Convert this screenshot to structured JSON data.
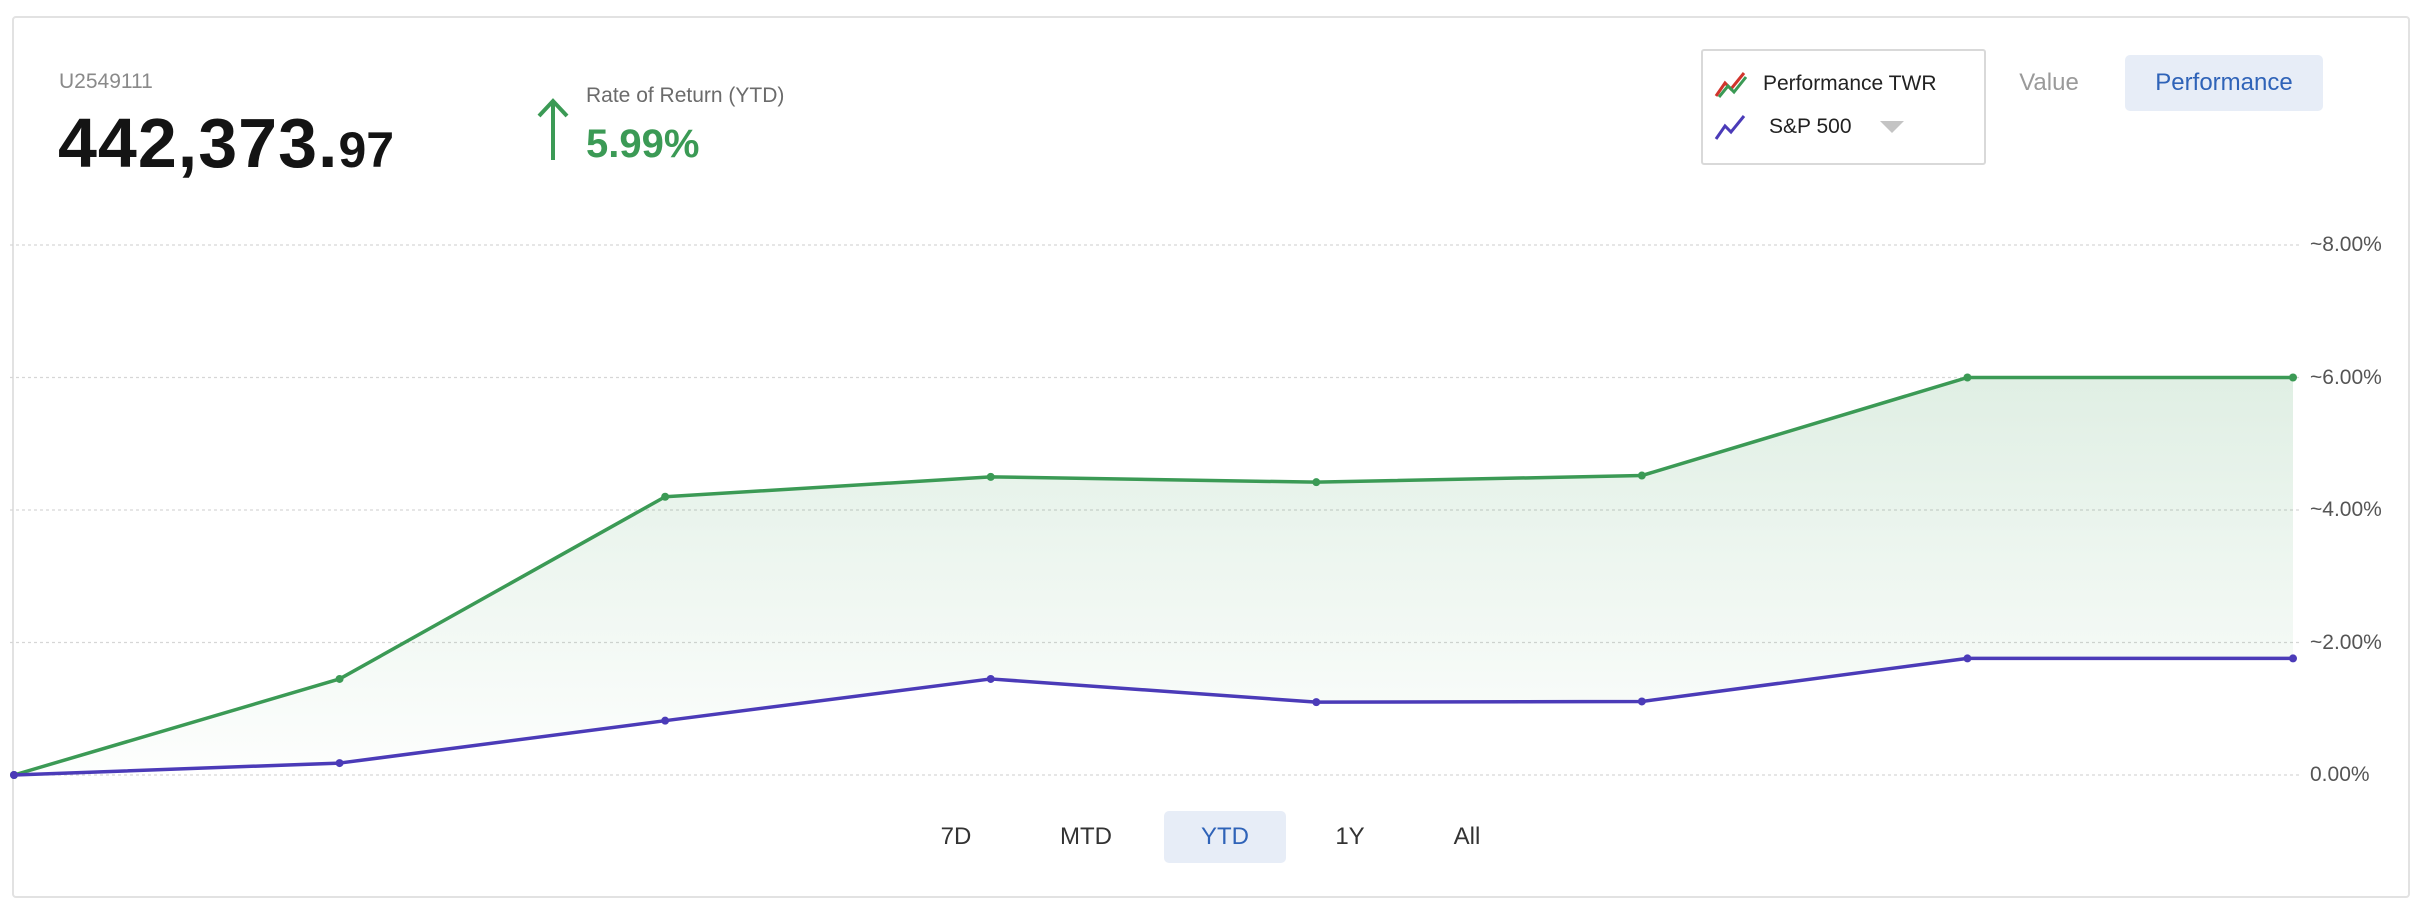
{
  "account": {
    "id": "U2549111",
    "balance_int": "442,373.",
    "balance_dec": "97"
  },
  "return": {
    "label": "Rate of Return (YTD)",
    "value": "5.99%"
  },
  "legend": {
    "items": [
      {
        "label": "Performance TWR",
        "icon": "trend-line-icon",
        "color": "#3b9a55"
      },
      {
        "label": "S&P 500",
        "icon": "trend-line-icon",
        "color": "#4b3bb8"
      }
    ]
  },
  "view_toggle": {
    "value_label": "Value",
    "performance_label": "Performance",
    "selected": "Performance"
  },
  "ranges": {
    "items": [
      "7D",
      "MTD",
      "YTD",
      "1Y",
      "All"
    ],
    "selected": "YTD"
  },
  "colors": {
    "positive": "#3b9a55",
    "benchmark": "#4b3bb8",
    "accent": "#2f63b8",
    "grid": "#d6d6d6"
  },
  "chart_data": {
    "type": "line",
    "x": [
      0,
      1,
      2,
      3,
      4,
      5,
      6,
      7
    ],
    "series": [
      {
        "name": "Performance TWR",
        "values": [
          0.0,
          1.45,
          4.2,
          4.5,
          4.42,
          4.52,
          6.0,
          6.0
        ],
        "area_fill": true
      },
      {
        "name": "S&P 500",
        "values": [
          0.0,
          0.18,
          0.82,
          1.45,
          1.1,
          1.11,
          1.76,
          1.76
        ]
      }
    ],
    "yticks": [
      "~8.00%",
      "~6.00%",
      "~4.00%",
      "~2.00%",
      "0.00%"
    ],
    "ytick_values": [
      8,
      6,
      4,
      2,
      0
    ],
    "ylim": [
      0,
      8
    ],
    "grid": true,
    "legend_position": "top-right"
  }
}
